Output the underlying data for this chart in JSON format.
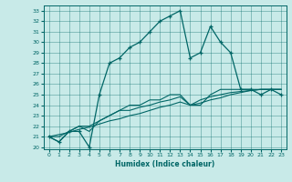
{
  "xlabel": "Humidex (Indice chaleur)",
  "ylabel": "",
  "bg_color": "#c8eae8",
  "line_color": "#006666",
  "x_ticks": [
    0,
    1,
    2,
    3,
    4,
    5,
    6,
    7,
    8,
    9,
    10,
    11,
    12,
    13,
    14,
    15,
    16,
    17,
    18,
    19,
    20,
    21,
    22,
    23
  ],
  "y_ticks": [
    20,
    21,
    22,
    23,
    24,
    25,
    26,
    27,
    28,
    29,
    30,
    31,
    32,
    33
  ],
  "ylim": [
    19.8,
    33.5
  ],
  "xlim": [
    -0.5,
    23.5
  ],
  "main_y": [
    21.0,
    20.5,
    21.5,
    21.5,
    20.0,
    25.0,
    28.0,
    28.5,
    29.5,
    30.0,
    31.0,
    32.0,
    32.5,
    33.0,
    28.5,
    29.0,
    31.5,
    30.0,
    29.0,
    25.5,
    25.5,
    25.0,
    25.5,
    25.0
  ],
  "line2_y": [
    21.0,
    20.5,
    21.5,
    22.0,
    21.5,
    22.5,
    23.0,
    23.5,
    24.0,
    24.0,
    24.5,
    24.5,
    25.0,
    25.0,
    24.0,
    24.0,
    25.0,
    25.5,
    25.5,
    25.5,
    25.5,
    25.5,
    25.5,
    25.5
  ],
  "line3_y": [
    21.0,
    21.0,
    21.5,
    22.0,
    22.0,
    22.5,
    23.0,
    23.5,
    23.5,
    23.8,
    24.0,
    24.3,
    24.5,
    24.8,
    24.0,
    24.5,
    24.8,
    25.0,
    25.2,
    25.3,
    25.4,
    25.5,
    25.5,
    25.5
  ],
  "line4_y": [
    21.0,
    21.2,
    21.4,
    21.7,
    21.9,
    22.2,
    22.5,
    22.7,
    23.0,
    23.2,
    23.5,
    23.8,
    24.0,
    24.3,
    24.0,
    24.2,
    24.5,
    24.7,
    25.0,
    25.2,
    25.4,
    25.5,
    25.5,
    25.5
  ],
  "tick_fontsize": 4.5,
  "xlabel_fontsize": 5.5,
  "grid_alpha": 0.6,
  "grid_lw": 0.4,
  "line_lw": 0.8,
  "main_lw": 0.9,
  "marker_size": 3.5
}
